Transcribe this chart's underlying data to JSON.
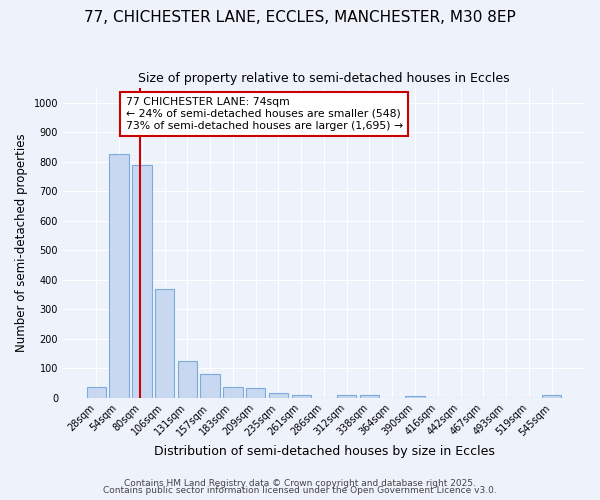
{
  "title1": "77, CHICHESTER LANE, ECCLES, MANCHESTER, M30 8EP",
  "title2": "Size of property relative to semi-detached houses in Eccles",
  "xlabel": "Distribution of semi-detached houses by size in Eccles",
  "ylabel": "Number of semi-detached properties",
  "bar_labels": [
    "28sqm",
    "54sqm",
    "80sqm",
    "106sqm",
    "131sqm",
    "157sqm",
    "183sqm",
    "209sqm",
    "235sqm",
    "261sqm",
    "286sqm",
    "312sqm",
    "338sqm",
    "364sqm",
    "390sqm",
    "416sqm",
    "442sqm",
    "467sqm",
    "493sqm",
    "519sqm",
    "545sqm"
  ],
  "bar_values": [
    35,
    825,
    790,
    370,
    125,
    82,
    35,
    32,
    15,
    10,
    0,
    10,
    10,
    0,
    7,
    0,
    0,
    0,
    0,
    0,
    10
  ],
  "bar_color": "#c8d8f0",
  "bar_edge_color": "#7aabda",
  "bar_width": 0.85,
  "ylim": [
    0,
    1050
  ],
  "yticks": [
    0,
    100,
    200,
    300,
    400,
    500,
    600,
    700,
    800,
    900,
    1000
  ],
  "red_line_color": "#cc0000",
  "red_line_x": 1.9,
  "annotation_text": "77 CHICHESTER LANE: 74sqm\n← 24% of semi-detached houses are smaller (548)\n73% of semi-detached houses are larger (1,695) →",
  "annotation_box_color": "#ffffff",
  "annotation_box_edge_color": "#cc0000",
  "footer1": "Contains HM Land Registry data © Crown copyright and database right 2025.",
  "footer2": "Contains public sector information licensed under the Open Government Licence v3.0.",
  "bg_color": "#eef2fb",
  "grid_color": "#ffffff",
  "title1_fontsize": 11,
  "title2_fontsize": 9,
  "tick_fontsize": 7,
  "ylabel_fontsize": 8.5,
  "xlabel_fontsize": 9,
  "footer_fontsize": 6.5
}
